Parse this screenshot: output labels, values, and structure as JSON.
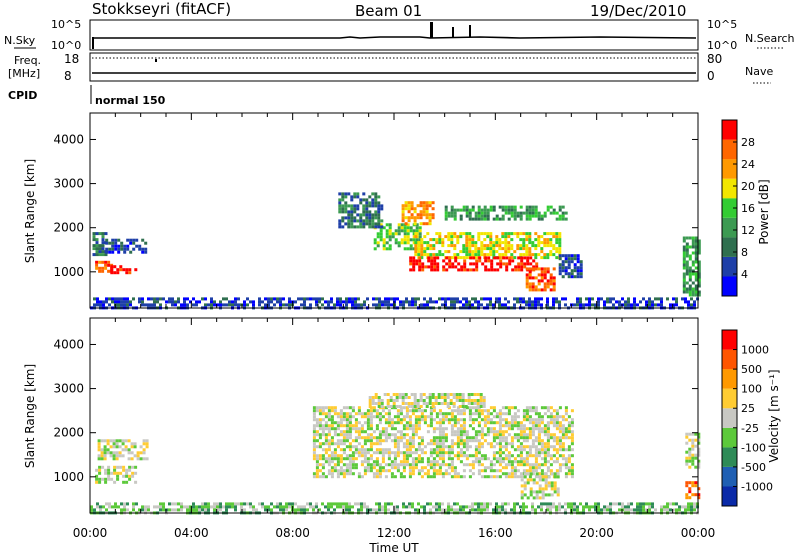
{
  "header": {
    "station": "Stokkseyri (fitACF)",
    "beam": "Beam 01",
    "date": "19/Dec/2010"
  },
  "noise_panel": {
    "left_label": "N.Sky",
    "left_ticks": [
      "10^5",
      "10^0"
    ],
    "right_label": "N.Search",
    "right_ticks": [
      "10^5",
      "10^0"
    ]
  },
  "freq_panel": {
    "left_label_1": "Freq.",
    "left_label_2": "[MHz]",
    "left_ticks": [
      "18",
      "8"
    ],
    "right_label": "Nave",
    "right_ticks": [
      "80",
      "0"
    ]
  },
  "cpid": {
    "label": "CPID",
    "mode": "normal 150"
  },
  "chart_data": {
    "type": "heatmap",
    "x": {
      "label": "Time UT",
      "range_hours": [
        0,
        24
      ],
      "tick_labels": [
        "00:00",
        "04:00",
        "08:00",
        "12:00",
        "16:00",
        "20:00",
        "00:00"
      ]
    },
    "y": {
      "label": "Slant Range [km]",
      "range": [
        180,
        4600
      ],
      "tick_labels": [
        "1000",
        "2000",
        "3000",
        "4000"
      ]
    },
    "power": {
      "label": "Power [dB]",
      "colorbar_ticks": [
        "28",
        "24",
        "20",
        "16",
        "12",
        "8",
        "4"
      ],
      "palette": [
        "#0000ff",
        "#1e3fa8",
        "#2f6f4f",
        "#3c9a52",
        "#33cc33",
        "#f2e600",
        "#ff9900",
        "#ff6600",
        "#ff0000"
      ],
      "regions": [
        {
          "t0": 0.1,
          "t1": 0.6,
          "r0": 1400,
          "r1": 1900,
          "level": 2
        },
        {
          "t0": 0.6,
          "t1": 2.2,
          "r0": 1450,
          "r1": 1750,
          "level": 1
        },
        {
          "t0": 0.2,
          "t1": 0.8,
          "r0": 1000,
          "r1": 1250,
          "level": 7
        },
        {
          "t0": 0.8,
          "t1": 1.8,
          "r0": 950,
          "r1": 1150,
          "level": 8
        },
        {
          "t0": 11.2,
          "t1": 13.0,
          "r0": 1500,
          "r1": 2100,
          "level": 4
        },
        {
          "t0": 12.3,
          "t1": 13.5,
          "r0": 2100,
          "r1": 2600,
          "level": 6
        },
        {
          "t0": 12.8,
          "t1": 18.5,
          "r0": 1300,
          "r1": 1900,
          "level": 5
        },
        {
          "t0": 12.6,
          "t1": 17.6,
          "r0": 1050,
          "r1": 1350,
          "level": 8
        },
        {
          "t0": 17.2,
          "t1": 18.3,
          "r0": 600,
          "r1": 1100,
          "level": 7
        },
        {
          "t0": 14.0,
          "t1": 18.8,
          "r0": 2200,
          "r1": 2500,
          "level": 3
        },
        {
          "t0": 9.8,
          "t1": 11.5,
          "r0": 2000,
          "r1": 2800,
          "level": 2
        },
        {
          "t0": 18.5,
          "t1": 19.4,
          "r0": 900,
          "r1": 1400,
          "level": 1
        },
        {
          "t0": 23.4,
          "t1": 24.0,
          "r0": 500,
          "r1": 1800,
          "level": 3
        },
        {
          "t0": 0.0,
          "t1": 24.0,
          "r0": 180,
          "r1": 420,
          "level": 1
        }
      ]
    },
    "velocity": {
      "label": "Velocity [m s⁻¹]",
      "colorbar_ticks": [
        "1000",
        "500",
        "100",
        "25",
        "-25",
        "-100",
        "-500",
        "-1000"
      ],
      "palette": [
        "#0a2aa8",
        "#1f5fb3",
        "#2e8b57",
        "#5cc93a",
        "#c8c8c3",
        "#ffcc33",
        "#ff9900",
        "#ff5500",
        "#ff0000"
      ],
      "regions": [
        {
          "t0": 0.3,
          "t1": 2.2,
          "r0": 1400,
          "r1": 1850,
          "level": 4
        },
        {
          "t0": 0.2,
          "t1": 1.8,
          "r0": 900,
          "r1": 1250,
          "level": 4
        },
        {
          "t0": 8.8,
          "t1": 19.0,
          "r0": 1000,
          "r1": 2600,
          "level": 4
        },
        {
          "t0": 11.0,
          "t1": 15.5,
          "r0": 2600,
          "r1": 2900,
          "level": 4
        },
        {
          "t0": 17.0,
          "t1": 18.5,
          "r0": 550,
          "r1": 1100,
          "level": 4
        },
        {
          "t0": 23.5,
          "t1": 24.0,
          "r0": 500,
          "r1": 900,
          "level": 7
        },
        {
          "t0": 0.0,
          "t1": 24.0,
          "r0": 180,
          "r1": 420,
          "level": 3
        },
        {
          "t0": 23.5,
          "t1": 24.0,
          "r0": 1200,
          "r1": 2000,
          "level": 4
        }
      ]
    }
  }
}
